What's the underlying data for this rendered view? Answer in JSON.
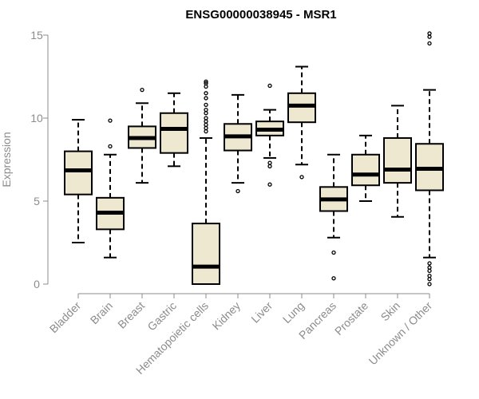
{
  "chart_data": {
    "type": "box",
    "title": "ENSG00000038945 - MSR1",
    "xlabel": "",
    "ylabel": "Expression",
    "ylim": [
      0,
      15.5
    ],
    "yticks": [
      0,
      5,
      10,
      15
    ],
    "grid": false,
    "colors": {
      "box_fill": "#efe8d0",
      "box_stroke": "#000000",
      "axis": "#8c8c8c"
    },
    "categories": [
      "Bladder",
      "Brain",
      "Breast",
      "Gastric",
      "Hematopoietic cells",
      "Kidney",
      "Liver",
      "Lung",
      "Pancreas",
      "Prostate",
      "Skin",
      "Unknown / Other"
    ],
    "boxes": [
      {
        "q1": 5.4,
        "median": 6.85,
        "q3": 8.0,
        "whisker_low": 2.5,
        "whisker_high": 9.9,
        "outliers": []
      },
      {
        "q1": 3.3,
        "median": 4.3,
        "q3": 5.2,
        "whisker_low": 1.6,
        "whisker_high": 7.8,
        "outliers": [
          8.3,
          9.85
        ]
      },
      {
        "q1": 8.2,
        "median": 8.8,
        "q3": 9.5,
        "whisker_low": 6.1,
        "whisker_high": 10.9,
        "outliers": [
          11.7
        ]
      },
      {
        "q1": 7.9,
        "median": 9.35,
        "q3": 10.3,
        "whisker_low": 7.1,
        "whisker_high": 11.5,
        "outliers": []
      },
      {
        "q1": 0.0,
        "median": 1.05,
        "q3": 3.65,
        "whisker_low": 0.0,
        "whisker_high": 8.8,
        "outliers": [
          9.2,
          9.4,
          9.6,
          9.8,
          10.0,
          10.3,
          10.5,
          10.8,
          11.2,
          11.5,
          11.9,
          12.1,
          12.2
        ]
      },
      {
        "q1": 8.05,
        "median": 8.9,
        "q3": 9.65,
        "whisker_low": 6.1,
        "whisker_high": 11.4,
        "outliers": [
          5.6
        ]
      },
      {
        "q1": 8.95,
        "median": 9.3,
        "q3": 9.8,
        "whisker_low": 7.6,
        "whisker_high": 10.5,
        "outliers": [
          6.0,
          7.1,
          7.3,
          11.95
        ]
      },
      {
        "q1": 9.75,
        "median": 10.75,
        "q3": 11.5,
        "whisker_low": 7.2,
        "whisker_high": 13.1,
        "outliers": [
          6.45
        ]
      },
      {
        "q1": 4.4,
        "median": 5.1,
        "q3": 5.85,
        "whisker_low": 2.8,
        "whisker_high": 7.8,
        "outliers": [
          0.35,
          1.9
        ]
      },
      {
        "q1": 5.95,
        "median": 6.6,
        "q3": 7.8,
        "whisker_low": 5.0,
        "whisker_high": 8.95,
        "outliers": []
      },
      {
        "q1": 6.1,
        "median": 6.9,
        "q3": 8.8,
        "whisker_low": 4.05,
        "whisker_high": 10.75,
        "outliers": []
      },
      {
        "q1": 5.65,
        "median": 6.95,
        "q3": 8.45,
        "whisker_low": 1.6,
        "whisker_high": 11.7,
        "outliers": [
          0.0,
          0.3,
          0.5,
          0.8,
          1.0,
          1.25,
          14.5,
          14.9,
          15.1
        ]
      }
    ]
  }
}
